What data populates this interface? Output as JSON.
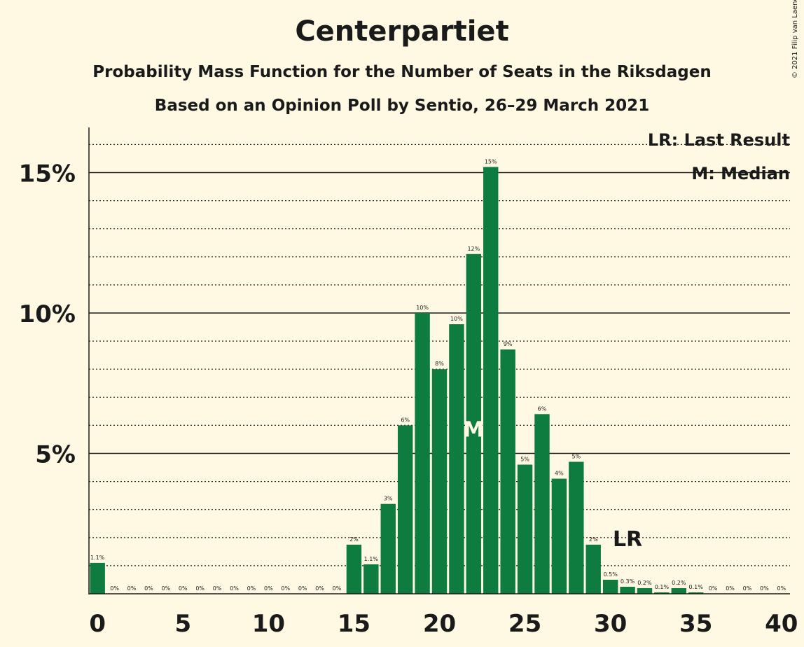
{
  "title": "Centerpartiet",
  "subtitle1": "Probability Mass Function for the Number of Seats in the Riksdagen",
  "subtitle2": "Based on an Opinion Poll by Sentio, 26–29 March 2021",
  "copyright": "© 2021 Filip van Laenen",
  "legend": {
    "last_result": "LR: Last Result",
    "median": "M: Median"
  },
  "colors": {
    "bar": "#0E7C3F",
    "background": "#FFF9E3"
  },
  "chart_data": {
    "type": "bar",
    "x": [
      0,
      1,
      2,
      3,
      4,
      5,
      6,
      7,
      8,
      9,
      10,
      11,
      12,
      13,
      14,
      15,
      16,
      17,
      18,
      19,
      20,
      21,
      22,
      23,
      24,
      25,
      26,
      27,
      28,
      29,
      30,
      31,
      32,
      33,
      34,
      35,
      36,
      37,
      38,
      39,
      40
    ],
    "values": [
      1.1,
      0,
      0,
      0,
      0,
      0,
      0,
      0,
      0,
      0,
      0,
      0,
      0,
      0,
      0,
      1.75,
      1.05,
      3.2,
      6.0,
      10.0,
      8.0,
      9.6,
      12.1,
      15.2,
      8.7,
      4.6,
      6.4,
      4.1,
      4.7,
      1.75,
      0.5,
      0.25,
      0.2,
      0.05,
      0.2,
      0.05,
      0,
      0,
      0,
      0,
      0
    ],
    "data_labels": [
      "1.1%",
      "0%",
      "0%",
      "0%",
      "0%",
      "0%",
      "0%",
      "0%",
      "0%",
      "0%",
      "0%",
      "0%",
      "0%",
      "0%",
      "0%",
      "2%",
      "1.1%",
      "3%",
      "6%",
      "10%",
      "8%",
      "10%",
      "12%",
      "15%",
      "9%",
      "5%",
      "6%",
      "4%",
      "5%",
      "2%",
      "0.5%",
      "0.3%",
      "0.2%",
      "0.1%",
      "0.2%",
      "0.1%",
      "0%",
      "0%",
      "0%",
      "0%",
      "0%"
    ],
    "x_ticks": [
      "0",
      "5",
      "10",
      "15",
      "20",
      "25",
      "30",
      "35",
      "40"
    ],
    "y_ticks": [
      "5%",
      "10%",
      "15%"
    ],
    "ylim": [
      0,
      16.5
    ],
    "median_seat": 22,
    "median_label": "M",
    "last_result_seat": 31,
    "last_result_label": "LR",
    "xlabel": "",
    "ylabel": ""
  }
}
